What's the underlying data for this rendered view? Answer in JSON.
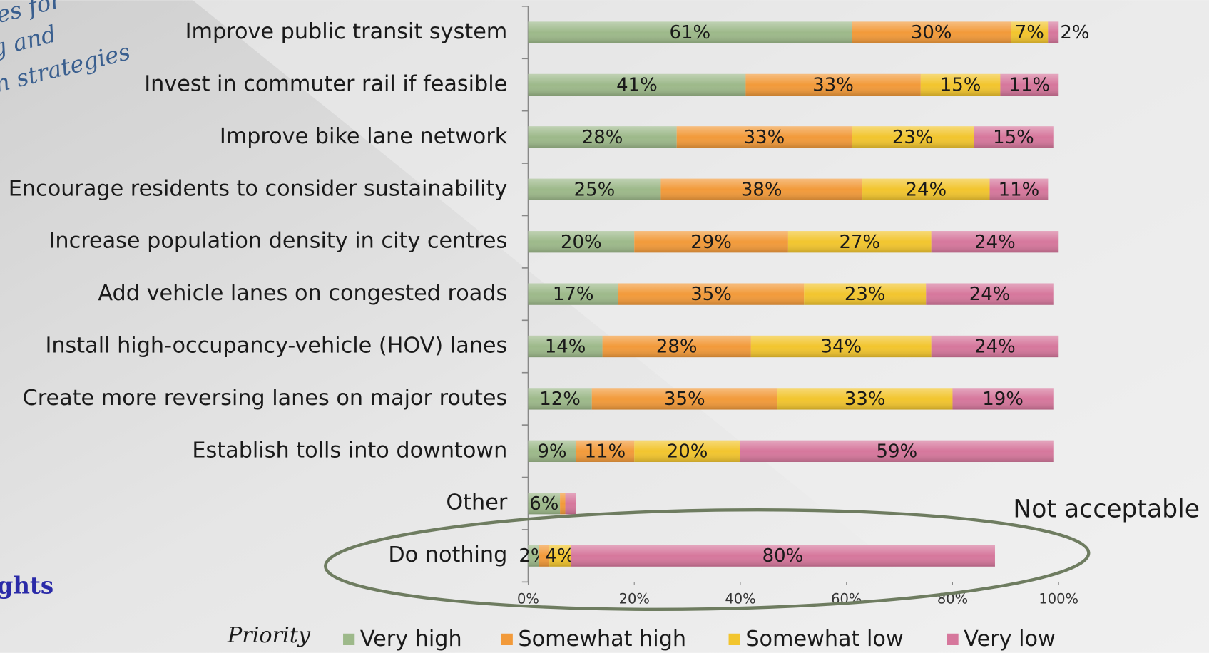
{
  "chart_data": {
    "type": "stacked-barh",
    "categories": [
      "Improve public transit system",
      "Invest in commuter rail if feasible",
      "Improve bike lane network",
      "Encourage residents to consider sustainability",
      "Increase population density in city centres",
      "Add vehicle lanes on congested roads",
      "Install high-occupancy-vehicle (HOV) lanes",
      "Create more reversing lanes on major routes",
      "Establish tolls into downtown",
      "Other",
      "Do nothing"
    ],
    "series": [
      {
        "name": "Very high",
        "color": "#9db98a",
        "values": [
          61,
          41,
          28,
          25,
          20,
          17,
          14,
          12,
          9,
          6,
          2
        ],
        "value_labels": [
          "61%",
          "41%",
          "28%",
          "25%",
          "20%",
          "17%",
          "14%",
          "12%",
          "9%",
          "6%",
          "2%"
        ]
      },
      {
        "name": "Somewhat high",
        "color": "#f29a3a",
        "values": [
          30,
          33,
          33,
          38,
          29,
          35,
          28,
          35,
          11,
          1,
          2
        ],
        "value_labels": [
          "30%",
          "33%",
          "33%",
          "38%",
          "29%",
          "35%",
          "28%",
          "35%",
          "11%",
          null,
          null
        ]
      },
      {
        "name": "Somewhat low",
        "color": "#f2c52e",
        "values": [
          7,
          15,
          23,
          24,
          27,
          23,
          34,
          33,
          20,
          0,
          4
        ],
        "value_labels": [
          "7%",
          "15%",
          "23%",
          "24%",
          "27%",
          "23%",
          "34%",
          "33%",
          "20%",
          null,
          "4%"
        ]
      },
      {
        "name": "Very low",
        "color": "#d6779c",
        "values": [
          2,
          11,
          15,
          11,
          24,
          24,
          24,
          19,
          59,
          2,
          80
        ],
        "value_labels": [
          "2%",
          "11%",
          "15%",
          "11%",
          "24%",
          "24%",
          "24%",
          "19%",
          "59%",
          null,
          "80%"
        ]
      }
    ],
    "xlim": [
      0,
      100
    ],
    "xticks": [
      {
        "value": 0,
        "label": "0%"
      },
      {
        "value": 20,
        "label": "20%"
      },
      {
        "value": 40,
        "label": "40%"
      },
      {
        "value": 60,
        "label": "60%"
      },
      {
        "value": 80,
        "label": "80%"
      },
      {
        "value": 100,
        "label": "100%"
      }
    ],
    "legend_title": "Priority",
    "legend": "bottom",
    "annotations": [
      "Not acceptable",
      "es for",
      "g and",
      "n strategies",
      "ghts"
    ]
  }
}
